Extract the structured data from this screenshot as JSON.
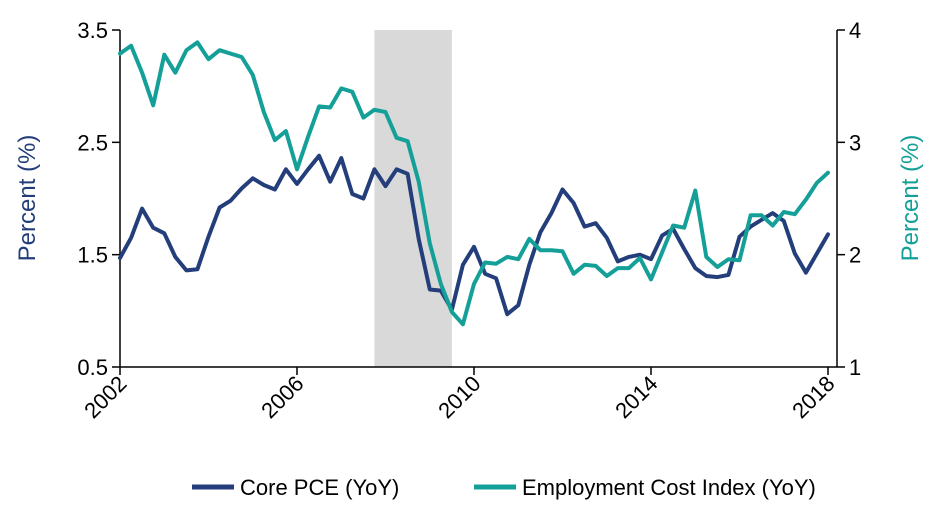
{
  "chart_data": {
    "type": "line",
    "title": "",
    "recession_band": {
      "x_start": 2007.75,
      "x_end": 2009.5,
      "color": "#d9d9d9"
    },
    "x_axis": {
      "range": [
        2002,
        2018.2
      ],
      "ticks": [
        2002,
        2006,
        2010,
        2014,
        2018
      ],
      "tick_labels": [
        "2002",
        "2006",
        "2010",
        "2014",
        "2018"
      ],
      "label": ""
    },
    "y_left": {
      "label": "Percent (%)",
      "range": [
        0.5,
        3.5
      ],
      "ticks": [
        0.5,
        1.5,
        2.5,
        3.5
      ],
      "tick_labels": [
        "0.5",
        "1.5",
        "2.5",
        "3.5"
      ],
      "color": "#233e7a"
    },
    "y_right": {
      "label": "Percent (%)",
      "range": [
        1,
        4
      ],
      "ticks": [
        1,
        2,
        3,
        4
      ],
      "tick_labels": [
        "1",
        "2",
        "3",
        "4"
      ],
      "color": "#14a098"
    },
    "grid": false,
    "legend_position": "bottom",
    "series": [
      {
        "name": "Core PCE (YoY)",
        "axis": "left",
        "color": "#233e7a",
        "points": [
          [
            2002.0,
            1.47
          ],
          [
            2002.25,
            1.65
          ],
          [
            2002.5,
            1.91
          ],
          [
            2002.75,
            1.74
          ],
          [
            2003.0,
            1.69
          ],
          [
            2003.25,
            1.48
          ],
          [
            2003.5,
            1.36
          ],
          [
            2003.75,
            1.37
          ],
          [
            2004.0,
            1.66
          ],
          [
            2004.25,
            1.92
          ],
          [
            2004.5,
            1.98
          ],
          [
            2004.75,
            2.09
          ],
          [
            2005.0,
            2.18
          ],
          [
            2005.25,
            2.12
          ],
          [
            2005.5,
            2.08
          ],
          [
            2005.75,
            2.26
          ],
          [
            2006.0,
            2.13
          ],
          [
            2006.25,
            2.26
          ],
          [
            2006.5,
            2.38
          ],
          [
            2006.75,
            2.15
          ],
          [
            2007.0,
            2.36
          ],
          [
            2007.25,
            2.04
          ],
          [
            2007.5,
            2.0
          ],
          [
            2007.75,
            2.26
          ],
          [
            2008.0,
            2.11
          ],
          [
            2008.25,
            2.26
          ],
          [
            2008.5,
            2.22
          ],
          [
            2008.75,
            1.64
          ],
          [
            2009.0,
            1.19
          ],
          [
            2009.25,
            1.18
          ],
          [
            2009.5,
            1.01
          ],
          [
            2009.75,
            1.41
          ],
          [
            2010.0,
            1.57
          ],
          [
            2010.25,
            1.33
          ],
          [
            2010.5,
            1.29
          ],
          [
            2010.75,
            0.97
          ],
          [
            2011.0,
            1.05
          ],
          [
            2011.25,
            1.41
          ],
          [
            2011.5,
            1.7
          ],
          [
            2011.75,
            1.87
          ],
          [
            2012.0,
            2.08
          ],
          [
            2012.25,
            1.96
          ],
          [
            2012.5,
            1.75
          ],
          [
            2012.75,
            1.78
          ],
          [
            2013.0,
            1.65
          ],
          [
            2013.25,
            1.44
          ],
          [
            2013.5,
            1.48
          ],
          [
            2013.75,
            1.5
          ],
          [
            2014.0,
            1.46
          ],
          [
            2014.25,
            1.67
          ],
          [
            2014.5,
            1.73
          ],
          [
            2014.75,
            1.55
          ],
          [
            2015.0,
            1.38
          ],
          [
            2015.25,
            1.31
          ],
          [
            2015.5,
            1.3
          ],
          [
            2015.75,
            1.32
          ],
          [
            2016.0,
            1.66
          ],
          [
            2016.25,
            1.75
          ],
          [
            2016.5,
            1.81
          ],
          [
            2016.75,
            1.87
          ],
          [
            2017.0,
            1.8
          ],
          [
            2017.25,
            1.51
          ],
          [
            2017.5,
            1.34
          ],
          [
            2017.75,
            1.51
          ],
          [
            2018.0,
            1.68
          ]
        ]
      },
      {
        "name": "Employment Cost Index (YoY)",
        "axis": "right",
        "color": "#14a098",
        "points": [
          [
            2002.0,
            3.79
          ],
          [
            2002.25,
            3.86
          ],
          [
            2002.5,
            3.62
          ],
          [
            2002.75,
            3.33
          ],
          [
            2003.0,
            3.78
          ],
          [
            2003.25,
            3.62
          ],
          [
            2003.5,
            3.82
          ],
          [
            2003.75,
            3.89
          ],
          [
            2004.0,
            3.74
          ],
          [
            2004.25,
            3.82
          ],
          [
            2004.5,
            3.79
          ],
          [
            2004.75,
            3.76
          ],
          [
            2005.0,
            3.6
          ],
          [
            2005.25,
            3.27
          ],
          [
            2005.5,
            3.02
          ],
          [
            2005.75,
            3.1
          ],
          [
            2006.0,
            2.76
          ],
          [
            2006.25,
            3.05
          ],
          [
            2006.5,
            3.32
          ],
          [
            2006.75,
            3.31
          ],
          [
            2007.0,
            3.48
          ],
          [
            2007.25,
            3.45
          ],
          [
            2007.5,
            3.22
          ],
          [
            2007.75,
            3.29
          ],
          [
            2008.0,
            3.27
          ],
          [
            2008.25,
            3.04
          ],
          [
            2008.5,
            3.01
          ],
          [
            2008.75,
            2.65
          ],
          [
            2009.0,
            2.1
          ],
          [
            2009.25,
            1.74
          ],
          [
            2009.5,
            1.49
          ],
          [
            2009.75,
            1.38
          ],
          [
            2010.0,
            1.74
          ],
          [
            2010.25,
            1.93
          ],
          [
            2010.5,
            1.92
          ],
          [
            2010.75,
            1.98
          ],
          [
            2011.0,
            1.96
          ],
          [
            2011.25,
            2.14
          ],
          [
            2011.5,
            2.04
          ],
          [
            2011.75,
            2.04
          ],
          [
            2012.0,
            2.03
          ],
          [
            2012.25,
            1.83
          ],
          [
            2012.5,
            1.91
          ],
          [
            2012.75,
            1.9
          ],
          [
            2013.0,
            1.81
          ],
          [
            2013.25,
            1.88
          ],
          [
            2013.5,
            1.88
          ],
          [
            2013.75,
            1.97
          ],
          [
            2014.0,
            1.78
          ],
          [
            2014.25,
            2.02
          ],
          [
            2014.5,
            2.26
          ],
          [
            2014.75,
            2.24
          ],
          [
            2015.0,
            2.57
          ],
          [
            2015.25,
            1.98
          ],
          [
            2015.5,
            1.89
          ],
          [
            2015.75,
            1.96
          ],
          [
            2016.0,
            1.95
          ],
          [
            2016.25,
            2.35
          ],
          [
            2016.5,
            2.35
          ],
          [
            2016.75,
            2.26
          ],
          [
            2017.0,
            2.38
          ],
          [
            2017.25,
            2.36
          ],
          [
            2017.5,
            2.49
          ],
          [
            2017.75,
            2.64
          ],
          [
            2018.0,
            2.73
          ]
        ]
      }
    ]
  }
}
